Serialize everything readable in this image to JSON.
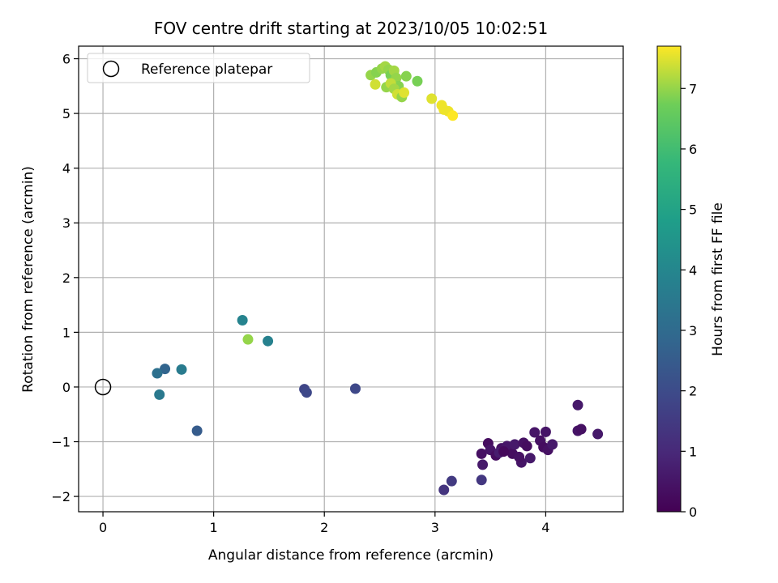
{
  "chart_data": {
    "type": "scatter",
    "title": "FOV centre drift starting at 2023/10/05 10:02:51",
    "xlabel": "Angular distance from reference (arcmin)",
    "ylabel": "Rotation from reference (arcmin)",
    "xlim": [
      -0.22,
      4.7
    ],
    "ylim": [
      -2.28,
      6.23
    ],
    "xticks": [
      0,
      1,
      2,
      3,
      4
    ],
    "yticks": [
      -2,
      -1,
      0,
      1,
      2,
      3,
      4,
      5,
      6
    ],
    "grid": true,
    "legend": {
      "placement": "top-left",
      "entries": [
        "Reference platepar"
      ]
    },
    "reference_point": {
      "x": 0,
      "y": 0,
      "label": "Reference platepar"
    },
    "colorbar": {
      "label": "Hours from first FF file",
      "min": 0,
      "max": 7.7,
      "ticks": [
        0,
        1,
        2,
        3,
        4,
        5,
        6,
        7
      ],
      "colormap": "viridis"
    },
    "points": [
      {
        "x": 3.48,
        "y": -1.03,
        "c": 0.3
      },
      {
        "x": 3.42,
        "y": -1.22,
        "c": 0.4
      },
      {
        "x": 3.5,
        "y": -1.15,
        "c": 0.5
      },
      {
        "x": 3.55,
        "y": -1.25,
        "c": 0.3
      },
      {
        "x": 3.43,
        "y": -1.42,
        "c": 0.6
      },
      {
        "x": 3.6,
        "y": -1.12,
        "c": 0.4
      },
      {
        "x": 3.65,
        "y": -1.08,
        "c": 0.5
      },
      {
        "x": 3.7,
        "y": -1.22,
        "c": 0.3
      },
      {
        "x": 3.72,
        "y": -1.05,
        "c": 0.6
      },
      {
        "x": 3.78,
        "y": -1.38,
        "c": 0.5
      },
      {
        "x": 3.8,
        "y": -1.02,
        "c": 0.4
      },
      {
        "x": 3.83,
        "y": -1.08,
        "c": 0.3
      },
      {
        "x": 3.86,
        "y": -1.3,
        "c": 0.6
      },
      {
        "x": 3.9,
        "y": -0.83,
        "c": 0.5
      },
      {
        "x": 3.95,
        "y": -0.98,
        "c": 0.4
      },
      {
        "x": 3.98,
        "y": -1.1,
        "c": 0.3
      },
      {
        "x": 4.0,
        "y": -0.82,
        "c": 0.5
      },
      {
        "x": 4.02,
        "y": -1.15,
        "c": 0.4
      },
      {
        "x": 4.06,
        "y": -1.05,
        "c": 0.6
      },
      {
        "x": 3.58,
        "y": -1.2,
        "c": 0.7
      },
      {
        "x": 3.62,
        "y": -1.18,
        "c": 0.2
      },
      {
        "x": 3.76,
        "y": -1.28,
        "c": 0.4
      },
      {
        "x": 4.29,
        "y": -0.33,
        "c": 0.6
      },
      {
        "x": 4.29,
        "y": -0.8,
        "c": 0.5
      },
      {
        "x": 4.32,
        "y": -0.77,
        "c": 0.4
      },
      {
        "x": 4.47,
        "y": -0.86,
        "c": 0.6
      },
      {
        "x": 3.42,
        "y": -1.7,
        "c": 1.4
      },
      {
        "x": 3.15,
        "y": -1.72,
        "c": 1.5
      },
      {
        "x": 3.08,
        "y": -1.88,
        "c": 1.3
      },
      {
        "x": 2.28,
        "y": -0.03,
        "c": 1.9
      },
      {
        "x": 1.82,
        "y": -0.04,
        "c": 1.8
      },
      {
        "x": 1.84,
        "y": -0.1,
        "c": 1.9
      },
      {
        "x": 0.85,
        "y": -0.8,
        "c": 2.5
      },
      {
        "x": 0.56,
        "y": 0.33,
        "c": 2.8
      },
      {
        "x": 0.49,
        "y": 0.25,
        "c": 3.2
      },
      {
        "x": 0.51,
        "y": -0.14,
        "c": 3.5
      },
      {
        "x": 0.71,
        "y": 0.32,
        "c": 3.6
      },
      {
        "x": 1.26,
        "y": 1.22,
        "c": 3.9
      },
      {
        "x": 1.49,
        "y": 0.84,
        "c": 3.8
      },
      {
        "x": 1.31,
        "y": 0.87,
        "c": 7.0
      },
      {
        "x": 2.42,
        "y": 5.7,
        "c": 7.0
      },
      {
        "x": 2.47,
        "y": 5.75,
        "c": 6.9
      },
      {
        "x": 2.52,
        "y": 5.82,
        "c": 7.0
      },
      {
        "x": 2.55,
        "y": 5.86,
        "c": 7.1
      },
      {
        "x": 2.58,
        "y": 5.8,
        "c": 7.0
      },
      {
        "x": 2.6,
        "y": 5.7,
        "c": 6.8
      },
      {
        "x": 2.63,
        "y": 5.78,
        "c": 7.1
      },
      {
        "x": 2.65,
        "y": 5.65,
        "c": 7.0
      },
      {
        "x": 2.67,
        "y": 5.5,
        "c": 6.9
      },
      {
        "x": 2.74,
        "y": 5.68,
        "c": 6.9
      },
      {
        "x": 2.84,
        "y": 5.59,
        "c": 6.8
      },
      {
        "x": 2.46,
        "y": 5.53,
        "c": 7.4
      },
      {
        "x": 2.56,
        "y": 5.48,
        "c": 7.0
      },
      {
        "x": 2.6,
        "y": 5.55,
        "c": 7.3
      },
      {
        "x": 2.63,
        "y": 5.45,
        "c": 7.1
      },
      {
        "x": 2.66,
        "y": 5.35,
        "c": 7.4
      },
      {
        "x": 2.7,
        "y": 5.3,
        "c": 7.0
      },
      {
        "x": 2.72,
        "y": 5.38,
        "c": 7.5
      },
      {
        "x": 2.97,
        "y": 5.27,
        "c": 7.5
      },
      {
        "x": 3.06,
        "y": 5.15,
        "c": 7.6
      },
      {
        "x": 3.08,
        "y": 5.07,
        "c": 7.6
      },
      {
        "x": 3.12,
        "y": 5.04,
        "c": 7.6
      },
      {
        "x": 3.16,
        "y": 4.96,
        "c": 7.7
      }
    ]
  }
}
